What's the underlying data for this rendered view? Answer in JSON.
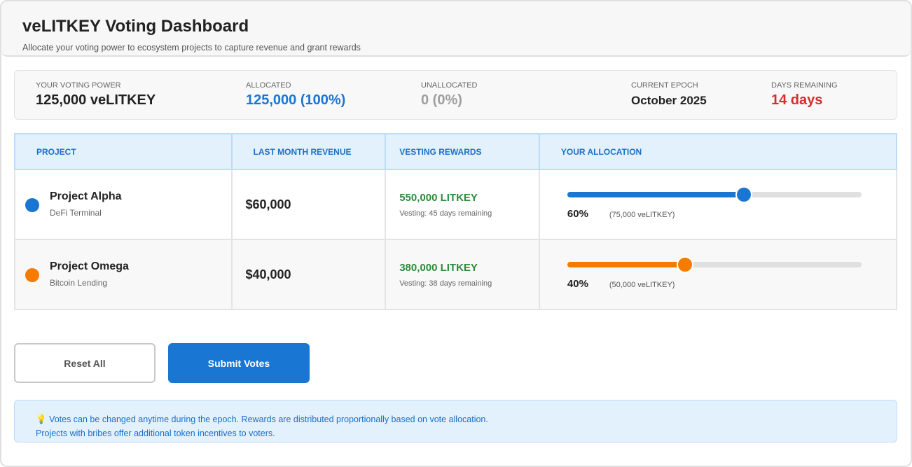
{
  "header": {
    "title": "veLITKEY Voting Dashboard",
    "subtitle": "Allocate your voting power to ecosystem projects to capture revenue and grant rewards"
  },
  "stats": [
    {
      "label": "YOUR VOTING POWER",
      "value": "125,000 veLITKEY",
      "color": "#222222"
    },
    {
      "label": "ALLOCATED",
      "value": "125,000 (100%)",
      "color": "#1976d2"
    },
    {
      "label": "UNALLOCATED",
      "value": "0 (0%)",
      "color": "#9e9e9e"
    },
    {
      "label": "CURRENT EPOCH",
      "value": "October 2025",
      "color": "#222222"
    },
    {
      "label": "DAYS REMAINING",
      "value": "14 days",
      "color": "#d32f2f"
    }
  ],
  "table": {
    "headers": [
      "PROJECT",
      "LAST MONTH REVENUE",
      "VESTING REWARDS",
      "YOUR ALLOCATION"
    ],
    "rows": [
      {
        "name": "Project Alpha",
        "category": "DeFi Terminal",
        "revenue": "$60,000",
        "rewards": "550,000 LITKEY",
        "vesting": "Vesting: 45 days remaining",
        "percent_label": "60%",
        "allocation": "(75,000 veLITKEY)",
        "percent": 60,
        "color": "#1976d2"
      },
      {
        "name": "Project Omega",
        "category": "Bitcoin Lending",
        "revenue": "$40,000",
        "rewards": "380,000 LITKEY",
        "vesting": "Vesting: 38 days remaining",
        "percent_label": "40%",
        "allocation": "(50,000 veLITKEY)",
        "percent": 40,
        "color": "#f57c00"
      }
    ]
  },
  "buttons": {
    "reset": "Reset All",
    "submit": "Submit Votes"
  },
  "info": {
    "icon": "lightbulb-icon",
    "line1": "Votes can be changed anytime during the epoch. Rewards are distributed proportionally based on vote allocation.",
    "line2": "Projects with bribes offer additional token incentives to voters."
  }
}
